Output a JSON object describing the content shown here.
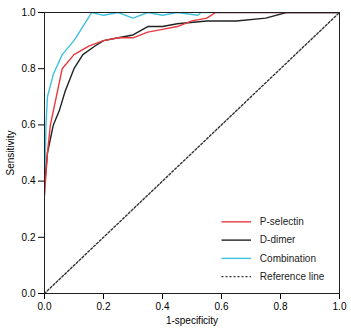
{
  "chart_data": {
    "type": "line",
    "x_label": "1-specificity",
    "y_label": "Sensitivity",
    "xlim": [
      0,
      1
    ],
    "ylim": [
      0,
      1
    ],
    "xticks": [
      {
        "value": 0,
        "label": "0.0"
      },
      0.2,
      0.4,
      0.6,
      0.8,
      {
        "value": 1,
        "label": "1.0"
      }
    ],
    "yticks": [
      {
        "value": 0,
        "label": "0.0"
      },
      0.2,
      0.4,
      0.6,
      0.8,
      {
        "value": 1,
        "label": "1.0"
      }
    ],
    "legend": "lower right",
    "grid": false,
    "series": [
      {
        "name": "P-selectin",
        "color": "#e8383d",
        "line_style": "solid",
        "x": [
          0,
          0.01,
          0.02,
          0.04,
          0.06,
          0.1,
          0.15,
          0.2,
          0.25,
          0.3,
          0.35,
          0.4,
          0.45,
          0.5,
          0.55,
          0.58,
          1
        ],
        "values": [
          0.35,
          0.5,
          0.6,
          0.7,
          0.8,
          0.85,
          0.88,
          0.9,
          0.91,
          0.91,
          0.93,
          0.94,
          0.95,
          0.97,
          0.98,
          1,
          1
        ]
      },
      {
        "name": "D-dimer",
        "color": "#222222",
        "line_style": "solid",
        "x": [
          0,
          0.01,
          0.03,
          0.05,
          0.07,
          0.1,
          0.13,
          0.17,
          0.2,
          0.25,
          0.3,
          0.35,
          0.4,
          0.45,
          0.55,
          0.65,
          0.75,
          0.82,
          1
        ],
        "values": [
          0.38,
          0.5,
          0.6,
          0.65,
          0.72,
          0.8,
          0.85,
          0.88,
          0.9,
          0.91,
          0.92,
          0.95,
          0.95,
          0.96,
          0.97,
          0.97,
          0.98,
          1,
          1
        ]
      },
      {
        "name": "Combination",
        "color": "#3fc1e0",
        "line_style": "solid",
        "x": [
          0,
          0.005,
          0.01,
          0.03,
          0.06,
          0.1,
          0.13,
          0.16,
          0.2,
          0.25,
          0.3,
          0.35,
          0.4,
          0.45,
          0.52,
          0.53,
          1
        ],
        "values": [
          0.35,
          0.6,
          0.7,
          0.78,
          0.85,
          0.9,
          0.95,
          1,
          0.99,
          1,
          0.98,
          1,
          0.99,
          1,
          0.99,
          1,
          1
        ]
      },
      {
        "name": "Reference line",
        "color": "#333333",
        "line_style": "dotted",
        "x": [
          0,
          1
        ],
        "values": [
          0,
          1
        ]
      }
    ]
  }
}
